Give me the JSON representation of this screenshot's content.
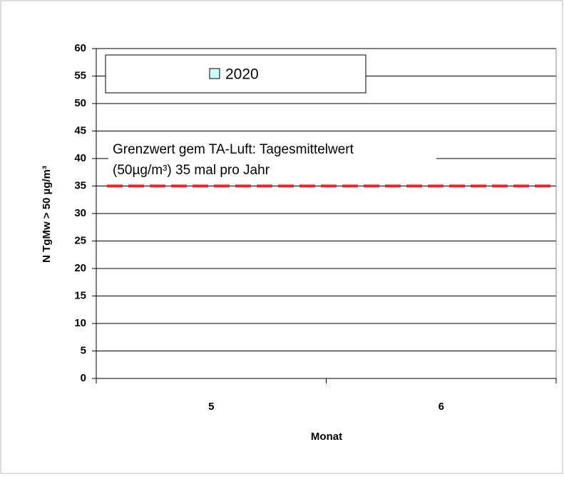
{
  "chart_data": {
    "type": "bar",
    "x_label": "Monat",
    "y_label": "N TgMw > 50 µg/m³",
    "categories": [
      "5",
      "6"
    ],
    "series": [
      {
        "name": "2020",
        "color": "#ccffff",
        "values": [
          0,
          0
        ]
      }
    ],
    "ylim": [
      0,
      60
    ],
    "yticks": [
      0,
      5,
      10,
      15,
      20,
      25,
      30,
      35,
      40,
      45,
      50,
      55,
      60
    ],
    "grid": true,
    "legend": "top-left",
    "reference_line": {
      "value": 35,
      "color": "#e8262a",
      "label": [
        "Grenzwert gem TA-Luft: Tagesmittelwert",
        "(50µg/m³)  35 mal pro Jahr"
      ]
    }
  }
}
